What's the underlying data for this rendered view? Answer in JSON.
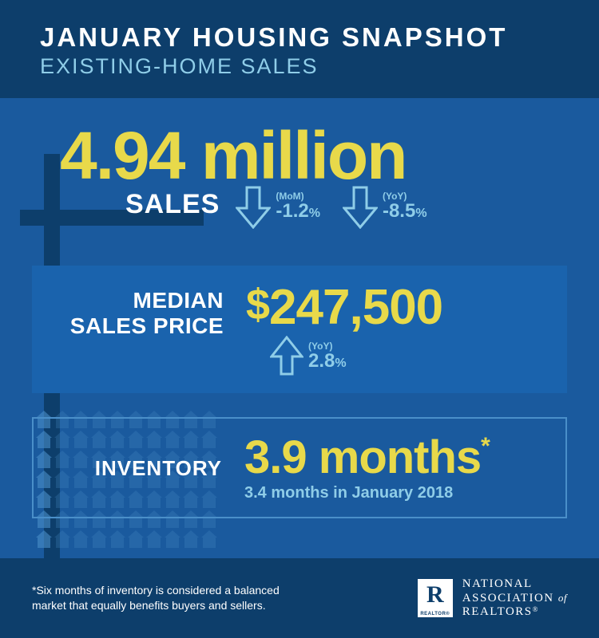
{
  "colors": {
    "bg_main": "#1a5a9e",
    "bg_dark": "#0d3e6b",
    "bg_panel": "#1a63ad",
    "accent_yellow": "#e8d94a",
    "accent_light": "#8fcde8",
    "white": "#ffffff",
    "border": "#4a8fc9"
  },
  "header": {
    "title": "JANUARY  HOUSING SNAPSHOT",
    "subtitle": "EXISTING-HOME SALES"
  },
  "sales": {
    "value": "4.94 million",
    "label": "SALES",
    "mom": {
      "period": "(MoM)",
      "value": "-1.2",
      "unit": "%",
      "direction": "down"
    },
    "yoy": {
      "period": "(YoY)",
      "value": "-8.5",
      "unit": "%",
      "direction": "down"
    }
  },
  "price": {
    "label_line1": "MEDIAN",
    "label_line2": "SALES PRICE",
    "currency": "$",
    "value": "247,500",
    "yoy": {
      "period": "(YoY)",
      "value": "2.8",
      "unit": "%",
      "direction": "up"
    }
  },
  "inventory": {
    "label": "INVENTORY",
    "value": "3.9 months",
    "asterisk": "*",
    "sub": "3.4 months in January 2018",
    "house_grid": {
      "rows": 7,
      "cols": 10,
      "highlight_col": 0
    }
  },
  "footer": {
    "note": "*Six months of inventory is considered a balanced market that equally benefits buyers and sellers.",
    "logo": {
      "badge_letter": "R",
      "badge_sub": "REALTOR®",
      "line1": "NATIONAL",
      "line2_a": "ASSOCIATION",
      "line2_b": "of",
      "line3": "REALTORS",
      "reg": "®"
    }
  }
}
